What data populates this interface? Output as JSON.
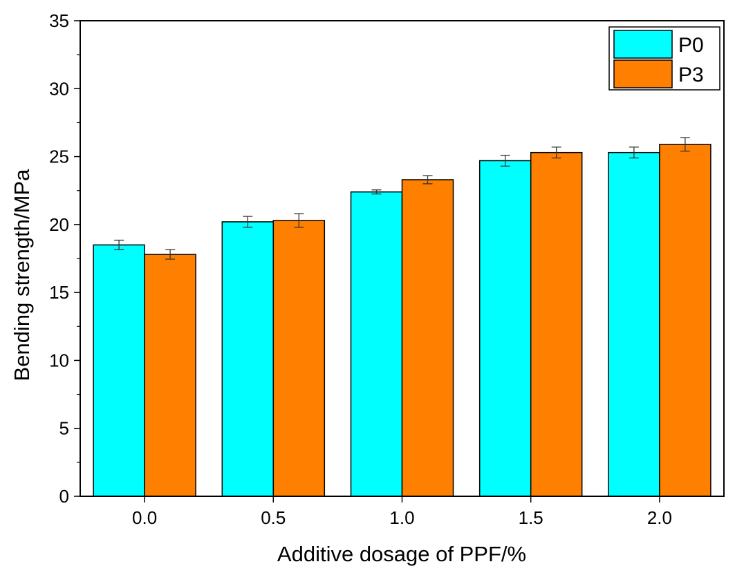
{
  "chart_data": {
    "type": "bar",
    "title": "",
    "xlabel": "Additive dosage of PPF/%",
    "ylabel": "Bending strength/MPa",
    "categories": [
      "0.0",
      "0.5",
      "1.0",
      "1.5",
      "2.0"
    ],
    "ylim": [
      0,
      35
    ],
    "yticks": [
      "0",
      "5",
      "10",
      "15",
      "20",
      "25",
      "30",
      "35"
    ],
    "grid": false,
    "legend_position": "top-right",
    "series": [
      {
        "name": "P0",
        "color": "#00FFFF",
        "values": [
          18.5,
          20.2,
          22.4,
          24.7,
          25.3
        ],
        "errors": [
          0.35,
          0.4,
          0.15,
          0.4,
          0.4
        ]
      },
      {
        "name": "P3",
        "color": "#FF8000",
        "values": [
          17.8,
          20.3,
          23.3,
          25.3,
          25.9
        ],
        "errors": [
          0.35,
          0.5,
          0.3,
          0.4,
          0.5
        ]
      }
    ]
  }
}
